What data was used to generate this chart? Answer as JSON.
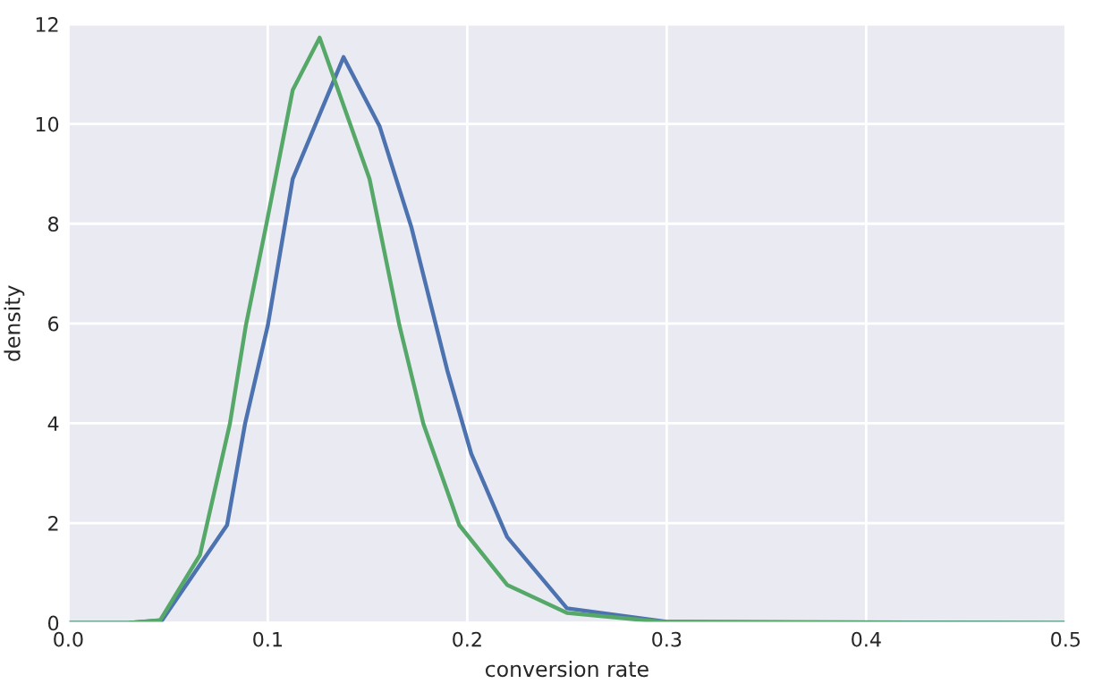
{
  "chart_data": {
    "type": "line",
    "xlabel": "conversion rate",
    "ylabel": "density",
    "xlim": [
      0,
      0.5
    ],
    "ylim": [
      0,
      12
    ],
    "xticks": [
      {
        "value": 0,
        "label": "0.0"
      },
      0.1,
      0.2,
      0.3,
      0.4,
      0.5
    ],
    "yticks": [
      0,
      2,
      4,
      6,
      8,
      10,
      12
    ],
    "grid": true,
    "line_style": "solid",
    "marker": "none",
    "series": [
      {
        "color": "#4c72b0",
        "x": [
          0,
          0.03,
          0.047,
          0.0796,
          0.0886,
          0.1,
          0.1125,
          0.138,
          0.156,
          0.172,
          0.19,
          0.202,
          0.22,
          0.25,
          0.3,
          0.5
        ],
        "values": [
          0,
          0,
          0.05,
          1.96,
          3.99,
          5.96,
          8.9,
          11.34,
          9.96,
          7.93,
          5.06,
          3.39,
          1.72,
          0.29,
          0.02,
          0
        ]
      },
      {
        "color": "#55a868",
        "x": [
          0,
          0.03,
          0.046,
          0.066,
          0.081,
          0.089,
          0.099,
          0.1125,
          0.126,
          0.151,
          0.166,
          0.178,
          0.196,
          0.22,
          0.25,
          0.3,
          0.5
        ],
        "values": [
          0,
          0,
          0.05,
          1.36,
          3.99,
          5.96,
          7.93,
          10.68,
          11.73,
          8.9,
          5.96,
          3.99,
          1.96,
          0.76,
          0.2,
          0.01,
          0
        ]
      }
    ]
  }
}
